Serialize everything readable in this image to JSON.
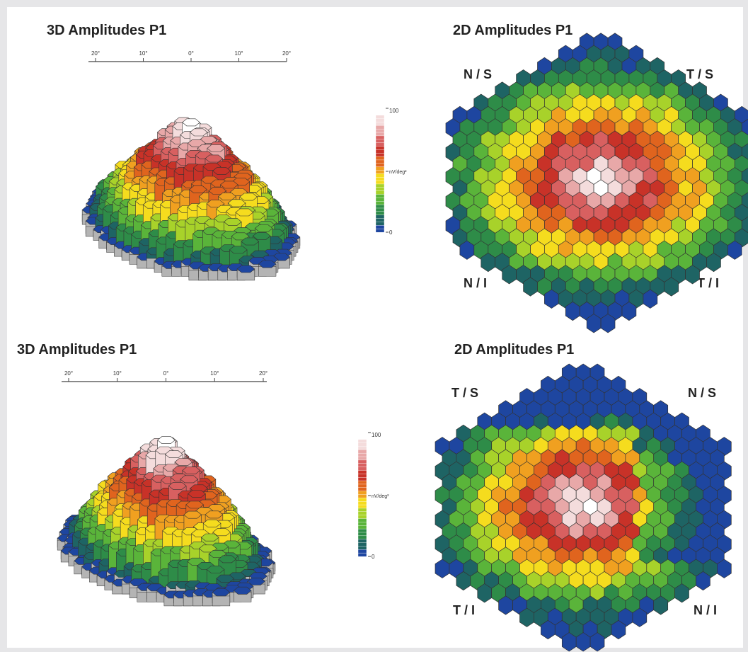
{
  "panels": {
    "top_left": {
      "title": "3D Amplitudes P1",
      "scale_ticks": [
        "20°",
        "10°",
        "0°",
        "10°",
        "20°"
      ]
    },
    "top_right": {
      "title": "2D Amplitudes P1",
      "corners": {
        "upper_left": "N / S",
        "upper_right": "T / S",
        "lower_left": "N / I",
        "lower_right": "T / I"
      }
    },
    "bottom_left": {
      "title": "3D Amplitudes P1",
      "scale_ticks": [
        "20°",
        "10°",
        "0°",
        "10°",
        "20°"
      ]
    },
    "bottom_right": {
      "title": "2D Amplitudes P1",
      "corners": {
        "upper_left": "T / S",
        "upper_right": "N / S",
        "lower_left": "T / I",
        "lower_right": "N / I"
      }
    }
  },
  "colorbar": {
    "top_label": "100",
    "mid_label": "nV/deg²",
    "bottom_label": "0",
    "colors": [
      "#ffffff",
      "#f4dcdc",
      "#e8a8a8",
      "#d86060",
      "#c83228",
      "#e0641e",
      "#f0a020",
      "#f5dc1e",
      "#a8d22a",
      "#5ab43a",
      "#2e8c48",
      "#1e6464",
      "#1e46a0"
    ]
  }
}
